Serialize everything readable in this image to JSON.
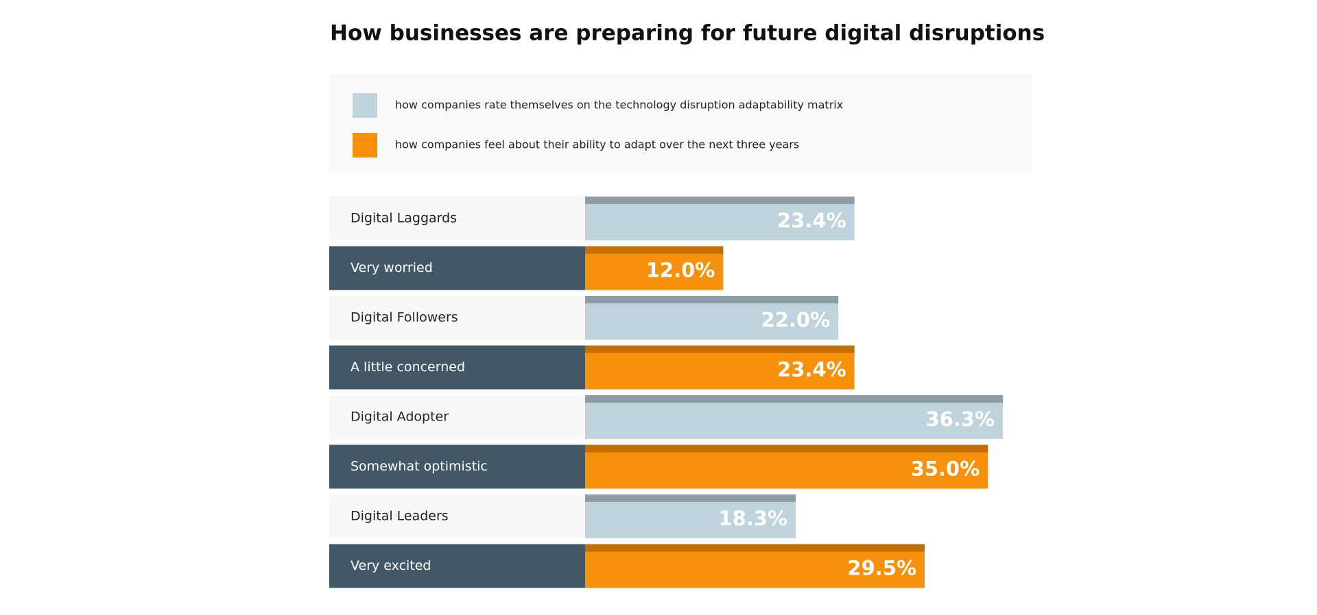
{
  "chart_data": {
    "type": "bar",
    "title": "How businesses are preparing for future digital disruptions",
    "series": [
      {
        "name": "how companies rate themselves on the technology disruption adaptability matrix",
        "color": "#bfd3dd",
        "edge_color": "#8e9ca6",
        "label_background": "#f8f8f8",
        "label_color": "#222222",
        "categories": [
          "Digital Laggards",
          "Digital Followers",
          "Digital Adopter",
          "Digital Leaders"
        ],
        "values": [
          23.4,
          22.0,
          36.3,
          18.3
        ],
        "value_labels": [
          "23.4%",
          "22.0%",
          "36.3%",
          "18.3%"
        ]
      },
      {
        "name": "how companies feel about their ability to adapt over the next three years",
        "color": "#f7900a",
        "edge_color": "#c46e00",
        "label_background": "#435866",
        "label_color": "#ffffff",
        "categories": [
          "Very worried",
          "A little concerned",
          "Somewhat optimistic",
          "Very excited"
        ],
        "values": [
          12.0,
          23.4,
          35.0,
          29.5
        ],
        "value_labels": [
          "12.0%",
          "23.4%",
          "35.0%",
          "29.5%"
        ]
      }
    ]
  }
}
